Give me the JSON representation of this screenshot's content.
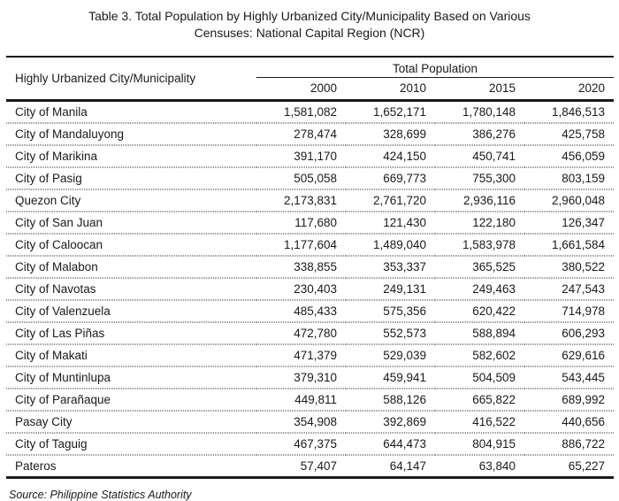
{
  "title": {
    "line1": "Table 3. Total Population by Highly Urbanized City/Municipality Based on Various",
    "line2": "Censuses: National Capital Region (NCR)"
  },
  "table": {
    "col_header": "Highly Urbanized City/Municipality",
    "group_header": "Total Population",
    "years": [
      "2000",
      "2010",
      "2015",
      "2020"
    ],
    "rows": [
      {
        "name": "City of Manila",
        "values": [
          "1,581,082",
          "1,652,171",
          "1,780,148",
          "1,846,513"
        ]
      },
      {
        "name": "City of Mandaluyong",
        "values": [
          "278,474",
          "328,699",
          "386,276",
          "425,758"
        ]
      },
      {
        "name": "City of Marikina",
        "values": [
          "391,170",
          "424,150",
          "450,741",
          "456,059"
        ]
      },
      {
        "name": "City of Pasig",
        "values": [
          "505,058",
          "669,773",
          "755,300",
          "803,159"
        ]
      },
      {
        "name": "Quezon City",
        "values": [
          "2,173,831",
          "2,761,720",
          "2,936,116",
          "2,960,048"
        ]
      },
      {
        "name": "City of San Juan",
        "values": [
          "117,680",
          "121,430",
          "122,180",
          "126,347"
        ]
      },
      {
        "name": "City of Caloocan",
        "values": [
          "1,177,604",
          "1,489,040",
          "1,583,978",
          "1,661,584"
        ]
      },
      {
        "name": "City of Malabon",
        "values": [
          "338,855",
          "353,337",
          "365,525",
          "380,522"
        ]
      },
      {
        "name": "City of Navotas",
        "values": [
          "230,403",
          "249,131",
          "249,463",
          "247,543"
        ]
      },
      {
        "name": "City of Valenzuela",
        "values": [
          "485,433",
          "575,356",
          "620,422",
          "714,978"
        ]
      },
      {
        "name": "City of Las Piñas",
        "values": [
          "472,780",
          "552,573",
          "588,894",
          "606,293"
        ]
      },
      {
        "name": "City of Makati",
        "values": [
          "471,379",
          "529,039",
          "582,602",
          "629,616"
        ]
      },
      {
        "name": "City of Muntinlupa",
        "values": [
          "379,310",
          "459,941",
          "504,509",
          "543,445"
        ]
      },
      {
        "name": "City of Parañaque",
        "values": [
          "449,811",
          "588,126",
          "665,822",
          "689,992"
        ]
      },
      {
        "name": "Pasay City",
        "values": [
          "354,908",
          "392,869",
          "416,522",
          "440,656"
        ]
      },
      {
        "name": "City of Taguig",
        "values": [
          "467,375",
          "644,473",
          "804,915",
          "886,722"
        ]
      },
      {
        "name": "Pateros",
        "values": [
          "57,407",
          "64,147",
          "63,840",
          "65,227"
        ]
      }
    ]
  },
  "source": "Source: Philippine Statistics Authority"
}
